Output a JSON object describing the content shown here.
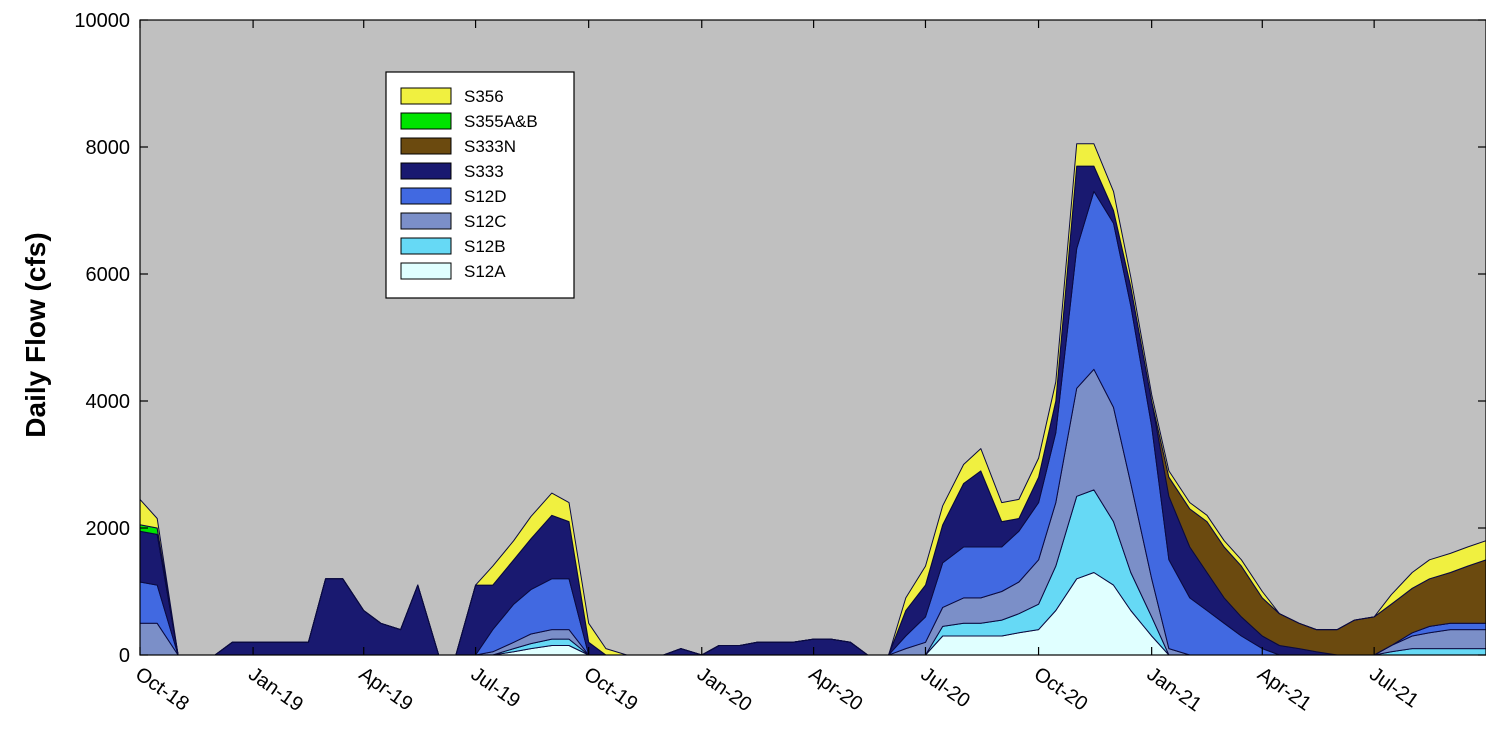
{
  "chart_data": {
    "type": "area",
    "stacked": true,
    "title": "",
    "xlabel": "",
    "ylabel": "Daily Flow (cfs)",
    "ylim": [
      0,
      10000
    ],
    "yticks": [
      0,
      2000,
      4000,
      6000,
      8000,
      10000
    ],
    "x": [
      "2018-10-01",
      "2018-10-15",
      "2018-11-01",
      "2018-11-15",
      "2018-12-01",
      "2018-12-15",
      "2019-01-01",
      "2019-01-15",
      "2019-02-01",
      "2019-02-15",
      "2019-03-01",
      "2019-03-15",
      "2019-04-01",
      "2019-04-15",
      "2019-05-01",
      "2019-05-15",
      "2019-06-01",
      "2019-06-15",
      "2019-07-01",
      "2019-07-15",
      "2019-08-01",
      "2019-08-15",
      "2019-09-01",
      "2019-09-15",
      "2019-10-01",
      "2019-10-15",
      "2019-11-01",
      "2019-11-15",
      "2019-12-01",
      "2019-12-15",
      "2020-01-01",
      "2020-01-15",
      "2020-02-01",
      "2020-02-15",
      "2020-03-01",
      "2020-03-15",
      "2020-04-01",
      "2020-04-15",
      "2020-05-01",
      "2020-05-15",
      "2020-06-01",
      "2020-06-15",
      "2020-07-01",
      "2020-07-15",
      "2020-08-01",
      "2020-08-15",
      "2020-09-01",
      "2020-09-15",
      "2020-10-01",
      "2020-10-15",
      "2020-11-01",
      "2020-11-15",
      "2020-12-01",
      "2020-12-15",
      "2021-01-01",
      "2021-01-15",
      "2021-02-01",
      "2021-02-15",
      "2021-03-01",
      "2021-03-15",
      "2021-04-01",
      "2021-04-15",
      "2021-05-01",
      "2021-05-15",
      "2021-06-01",
      "2021-06-15",
      "2021-07-01",
      "2021-07-15",
      "2021-08-01",
      "2021-08-15",
      "2021-09-01",
      "2021-09-15",
      "2021-09-30"
    ],
    "xtick_labels": [
      "Oct-18",
      "Jan-19",
      "Apr-19",
      "Jul-19",
      "Oct-19",
      "Jan-20",
      "Apr-20",
      "Jul-20",
      "Oct-20",
      "Jan-21",
      "Apr-21",
      "Jul-21"
    ],
    "xtick_dates": [
      "2018-10-01",
      "2019-01-01",
      "2019-04-01",
      "2019-07-01",
      "2019-10-01",
      "2020-01-01",
      "2020-04-01",
      "2020-07-01",
      "2020-10-01",
      "2021-01-01",
      "2021-04-01",
      "2021-07-01"
    ],
    "series": [
      {
        "name": "S12A",
        "color": "#e0ffff",
        "values": [
          0,
          0,
          0,
          0,
          0,
          0,
          0,
          0,
          0,
          0,
          0,
          0,
          0,
          0,
          0,
          0,
          0,
          0,
          0,
          0,
          50,
          100,
          150,
          150,
          0,
          0,
          0,
          0,
          0,
          0,
          0,
          0,
          0,
          0,
          0,
          0,
          0,
          0,
          0,
          0,
          0,
          0,
          0,
          300,
          300,
          300,
          300,
          350,
          400,
          700,
          1200,
          1300,
          1100,
          700,
          300,
          0,
          0,
          0,
          0,
          0,
          0,
          0,
          0,
          0,
          0,
          0,
          0,
          0,
          0,
          0,
          0,
          0,
          0
        ]
      },
      {
        "name": "S12B",
        "color": "#66d9f5",
        "values": [
          0,
          0,
          0,
          0,
          0,
          0,
          0,
          0,
          0,
          0,
          0,
          0,
          0,
          0,
          0,
          0,
          0,
          0,
          0,
          0,
          50,
          80,
          100,
          100,
          0,
          0,
          0,
          0,
          0,
          0,
          0,
          0,
          0,
          0,
          0,
          0,
          0,
          0,
          0,
          0,
          0,
          0,
          0,
          150,
          200,
          200,
          250,
          300,
          400,
          700,
          1300,
          1300,
          1000,
          600,
          300,
          0,
          0,
          0,
          0,
          0,
          0,
          0,
          0,
          0,
          0,
          0,
          0,
          50,
          100,
          100,
          100,
          100,
          100
        ]
      },
      {
        "name": "S12C",
        "color": "#7b8fc8",
        "values": [
          500,
          500,
          0,
          0,
          0,
          0,
          0,
          0,
          0,
          0,
          0,
          0,
          0,
          0,
          0,
          0,
          0,
          0,
          0,
          50,
          100,
          150,
          150,
          150,
          0,
          0,
          0,
          0,
          0,
          0,
          0,
          0,
          0,
          0,
          0,
          0,
          0,
          0,
          0,
          0,
          0,
          100,
          200,
          300,
          400,
          400,
          450,
          500,
          700,
          1000,
          1700,
          1900,
          1800,
          1400,
          600,
          100,
          0,
          0,
          0,
          0,
          0,
          0,
          0,
          0,
          0,
          0,
          0,
          100,
          200,
          250,
          300,
          300,
          300
        ]
      },
      {
        "name": "S12D",
        "color": "#4169e1",
        "values": [
          650,
          600,
          0,
          0,
          0,
          0,
          0,
          0,
          0,
          0,
          0,
          0,
          0,
          0,
          0,
          0,
          0,
          0,
          0,
          350,
          600,
          700,
          800,
          800,
          0,
          0,
          0,
          0,
          0,
          0,
          0,
          0,
          0,
          0,
          0,
          0,
          0,
          0,
          0,
          0,
          0,
          200,
          400,
          700,
          800,
          800,
          700,
          800,
          900,
          1100,
          2200,
          2800,
          2900,
          2800,
          2400,
          1400,
          900,
          700,
          500,
          300,
          100,
          0,
          0,
          0,
          0,
          0,
          0,
          0,
          50,
          100,
          100,
          100,
          100
        ]
      },
      {
        "name": "S333",
        "color": "#191970",
        "values": [
          800,
          800,
          0,
          0,
          0,
          200,
          200,
          200,
          200,
          200,
          1200,
          1200,
          700,
          500,
          400,
          1100,
          0,
          0,
          1100,
          700,
          700,
          800,
          1000,
          900,
          200,
          0,
          0,
          0,
          0,
          100,
          0,
          150,
          150,
          200,
          200,
          200,
          250,
          250,
          200,
          0,
          0,
          400,
          500,
          600,
          1000,
          1200,
          400,
          200,
          400,
          500,
          1300,
          400,
          200,
          300,
          400,
          1000,
          800,
          600,
          400,
          300,
          200,
          150,
          100,
          50,
          0,
          0,
          0,
          0,
          0,
          0,
          0,
          0,
          0
        ]
      },
      {
        "name": "S333N",
        "color": "#6b4a0f",
        "values": [
          0,
          0,
          0,
          0,
          0,
          0,
          0,
          0,
          0,
          0,
          0,
          0,
          0,
          0,
          0,
          0,
          0,
          0,
          0,
          0,
          0,
          0,
          0,
          0,
          0,
          0,
          0,
          0,
          0,
          0,
          0,
          0,
          0,
          0,
          0,
          0,
          0,
          0,
          0,
          0,
          0,
          0,
          0,
          0,
          0,
          0,
          0,
          0,
          0,
          0,
          0,
          0,
          0,
          0,
          0,
          300,
          600,
          800,
          800,
          800,
          600,
          500,
          400,
          350,
          400,
          550,
          600,
          650,
          700,
          750,
          800,
          900,
          1000
        ]
      },
      {
        "name": "S355A&B",
        "color": "#00e400",
        "values": [
          100,
          100,
          0,
          0,
          0,
          0,
          0,
          0,
          0,
          0,
          0,
          0,
          0,
          0,
          0,
          0,
          0,
          0,
          0,
          0,
          0,
          0,
          0,
          0,
          0,
          0,
          0,
          0,
          0,
          0,
          0,
          0,
          0,
          0,
          0,
          0,
          0,
          0,
          0,
          0,
          0,
          0,
          0,
          0,
          0,
          0,
          0,
          0,
          0,
          0,
          0,
          0,
          0,
          0,
          0,
          0,
          0,
          0,
          0,
          0,
          0,
          0,
          0,
          0,
          0,
          0,
          0,
          0,
          0,
          0,
          0,
          0,
          0
        ]
      },
      {
        "name": "S356",
        "color": "#f0f040",
        "values": [
          400,
          150,
          0,
          0,
          0,
          0,
          0,
          0,
          0,
          0,
          0,
          0,
          0,
          0,
          0,
          0,
          0,
          0,
          0,
          300,
          300,
          350,
          350,
          300,
          300,
          100,
          0,
          0,
          0,
          0,
          0,
          0,
          0,
          0,
          0,
          0,
          0,
          0,
          0,
          0,
          0,
          200,
          300,
          300,
          300,
          350,
          300,
          300,
          300,
          300,
          350,
          350,
          300,
          150,
          100,
          100,
          100,
          100,
          100,
          100,
          100,
          0,
          0,
          0,
          0,
          0,
          0,
          150,
          250,
          300,
          300,
          300,
          300
        ]
      }
    ],
    "legend": {
      "placement": "upper-left inside",
      "order": [
        "S356",
        "S355A&B",
        "S333N",
        "S333",
        "S12D",
        "S12C",
        "S12B",
        "S12A"
      ]
    },
    "plot_background": "#c0c0c0",
    "grid": false
  }
}
